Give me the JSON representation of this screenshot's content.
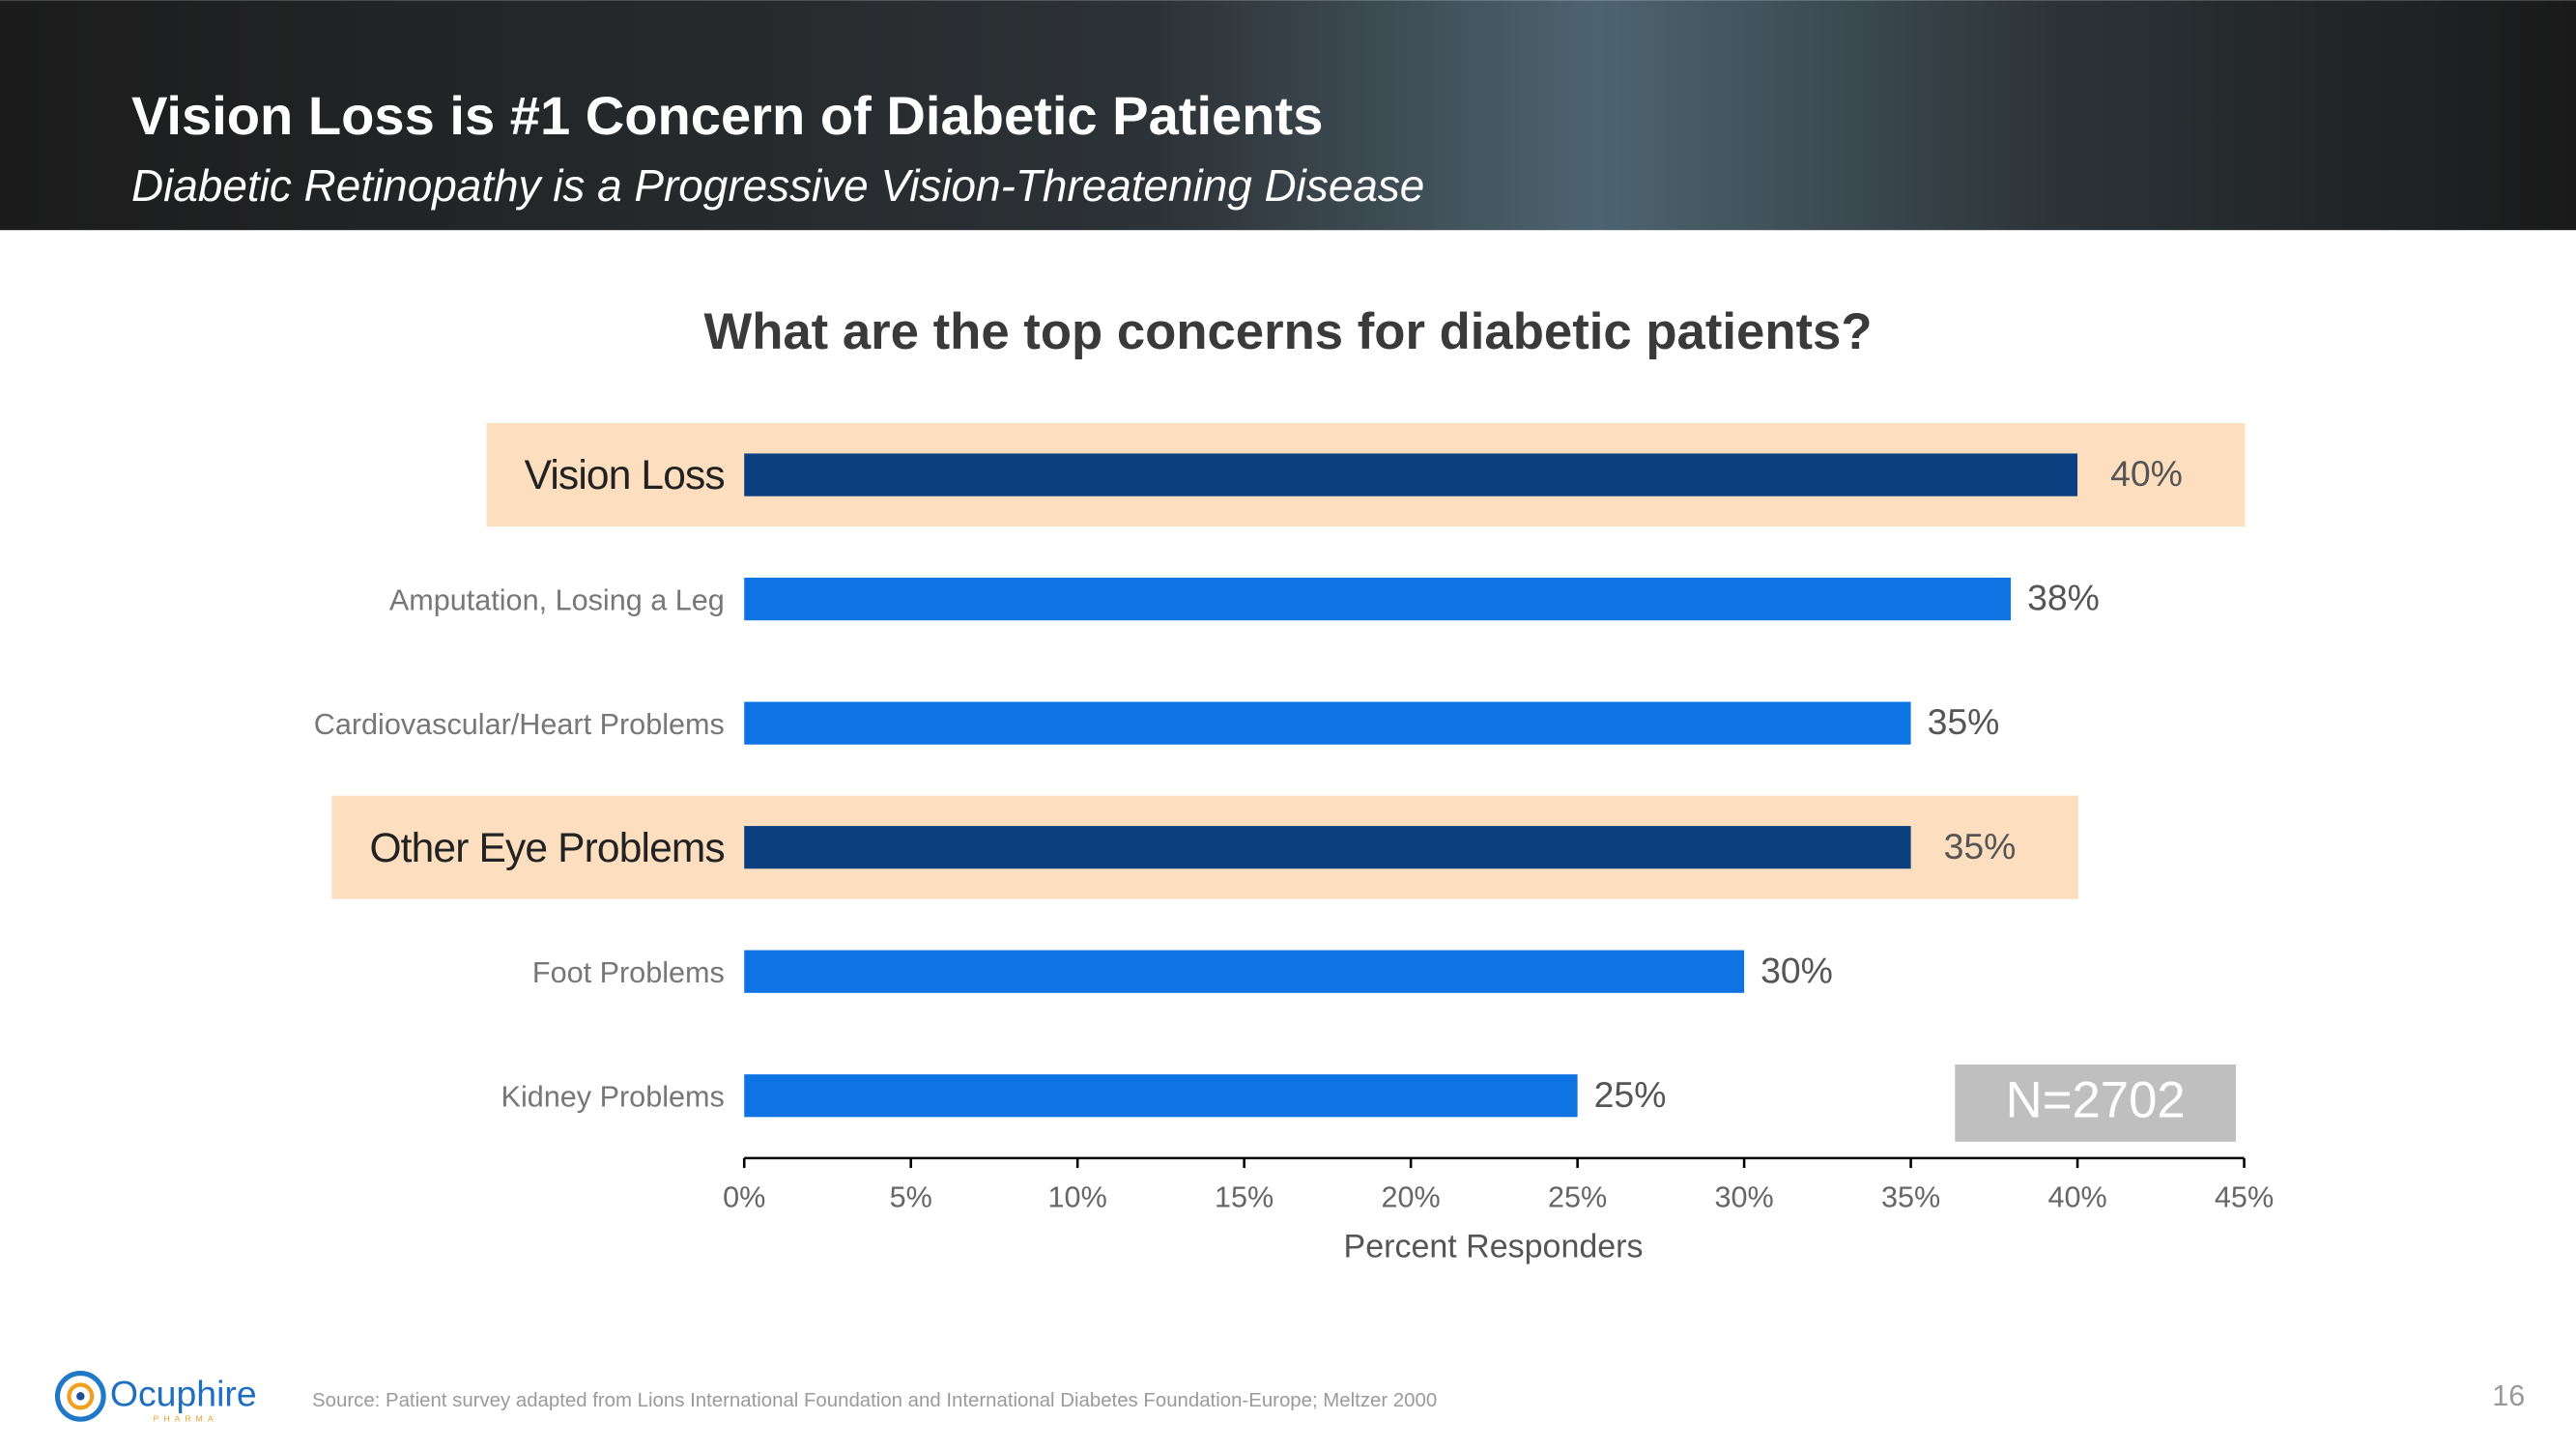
{
  "header": {
    "title": "Vision Loss is #1 Concern of Diabetic Patients",
    "subtitle": "Diabetic Retinopathy is a Progressive Vision-Threatening Disease"
  },
  "chart_data": {
    "type": "bar",
    "orientation": "horizontal",
    "title": "What are the top concerns for diabetic patients?",
    "categories": [
      "Vision Loss",
      "Amputation, Losing a Leg",
      "Cardiovascular/Heart Problems",
      "Other Eye Problems",
      "Foot Problems",
      "Kidney Problems"
    ],
    "values": [
      40,
      38,
      35,
      35,
      30,
      25
    ],
    "value_labels": [
      "40%",
      "38%",
      "35%",
      "35%",
      "30%",
      "25%"
    ],
    "colors": [
      "#0a3f80",
      "#0f74e3",
      "#0f74e3",
      "#0a3f80",
      "#0f74e3",
      "#0f74e3"
    ],
    "highlight": [
      true,
      false,
      false,
      true,
      false,
      false
    ],
    "highlight_color": "#fddfc0",
    "xlim": [
      0,
      45
    ],
    "xticks": [
      {
        "value": 0,
        "label": "0%"
      },
      {
        "value": 5,
        "label": "5%"
      },
      {
        "value": 10,
        "label": "10%"
      },
      {
        "value": 15,
        "label": "15%"
      },
      {
        "value": 20,
        "label": "20%"
      },
      {
        "value": 25,
        "label": "25%"
      },
      {
        "value": 30,
        "label": "30%"
      },
      {
        "value": 35,
        "label": "35%"
      },
      {
        "value": 40,
        "label": "40%"
      },
      {
        "value": 45,
        "label": "45%"
      }
    ],
    "xlabel": "Percent Responders",
    "annotation": "N=2702"
  },
  "footer": {
    "source": "Source: Patient survey adapted from Lions International Foundation and International Diabetes Foundation-Europe; Meltzer 2000",
    "page_number": "16",
    "logo": "Ocuphire",
    "logo_sub": "PHARMA"
  }
}
